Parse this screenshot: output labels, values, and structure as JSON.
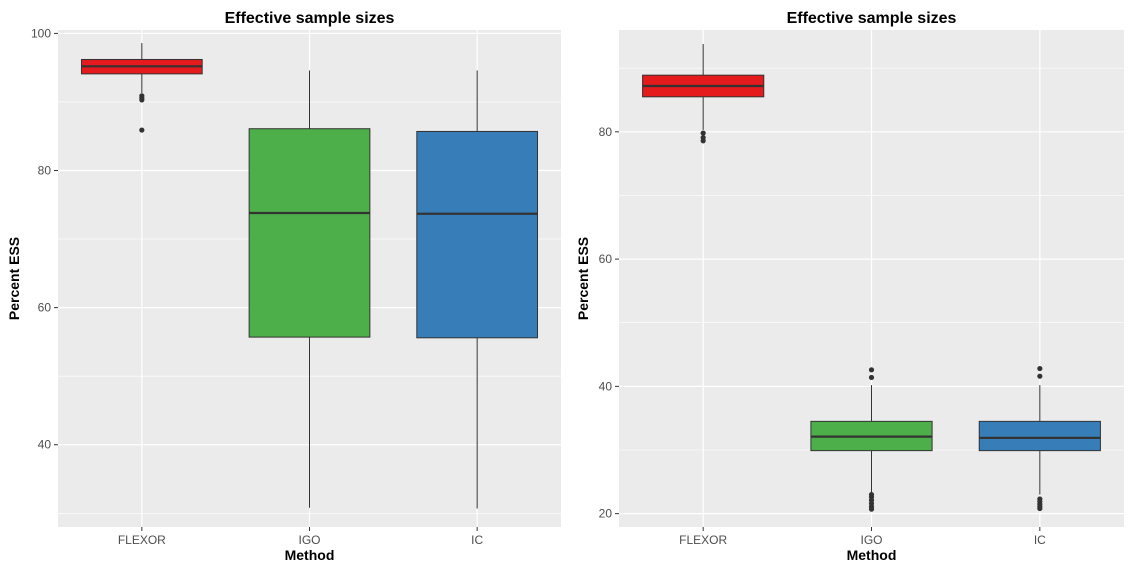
{
  "chart_data": [
    {
      "type": "boxplot",
      "title": "Effective sample sizes",
      "xlabel": "Method",
      "ylabel": "Percent ESS",
      "categories": [
        "FLEXOR",
        "IGO",
        "IC"
      ],
      "ylim": [
        28,
        100.5
      ],
      "yticks": [
        40,
        60,
        80,
        100
      ],
      "grid": true,
      "legend": "none",
      "boxes": [
        {
          "category": "FLEXOR",
          "color": "#e41a1c",
          "whisker_low": 91.3,
          "q1": 94.1,
          "median": 95.2,
          "q3": 96.2,
          "whisker_high": 98.6,
          "outliers": [
            90.9,
            90.6,
            90.3,
            85.9
          ]
        },
        {
          "category": "IGO",
          "color": "#4daf4a",
          "whisker_low": 30.8,
          "q1": 55.7,
          "median": 73.8,
          "q3": 86.1,
          "whisker_high": 94.6,
          "outliers": []
        },
        {
          "category": "IC",
          "color": "#377eb8",
          "whisker_low": 30.7,
          "q1": 55.6,
          "median": 73.7,
          "q3": 85.7,
          "whisker_high": 94.6,
          "outliers": []
        }
      ]
    },
    {
      "type": "boxplot",
      "title": "Effective sample sizes",
      "xlabel": "Method",
      "ylabel": "Percent ESS",
      "categories": [
        "FLEXOR",
        "IGO",
        "IC"
      ],
      "ylim": [
        17.9,
        96
      ],
      "yticks": [
        20,
        40,
        60,
        80
      ],
      "grid": true,
      "legend": "none",
      "boxes": [
        {
          "category": "FLEXOR",
          "color": "#e41a1c",
          "whisker_low": 80.3,
          "q1": 85.5,
          "median": 87.2,
          "q3": 88.9,
          "whisker_high": 93.8,
          "outliers": [
            79.8,
            79.1,
            78.6
          ]
        },
        {
          "category": "IGO",
          "color": "#4daf4a",
          "whisker_low": 23.3,
          "q1": 29.9,
          "median": 32.1,
          "q3": 34.5,
          "whisker_high": 40.2,
          "outliers": [
            42.6,
            41.4,
            23.0,
            22.6,
            22.1,
            21.6,
            21.1,
            20.7
          ]
        },
        {
          "category": "IC",
          "color": "#377eb8",
          "whisker_low": 23.0,
          "q1": 29.9,
          "median": 31.9,
          "q3": 34.5,
          "whisker_high": 40.2,
          "outliers": [
            42.8,
            41.6,
            22.3,
            21.9,
            21.5,
            21.1,
            20.8
          ]
        }
      ]
    }
  ]
}
